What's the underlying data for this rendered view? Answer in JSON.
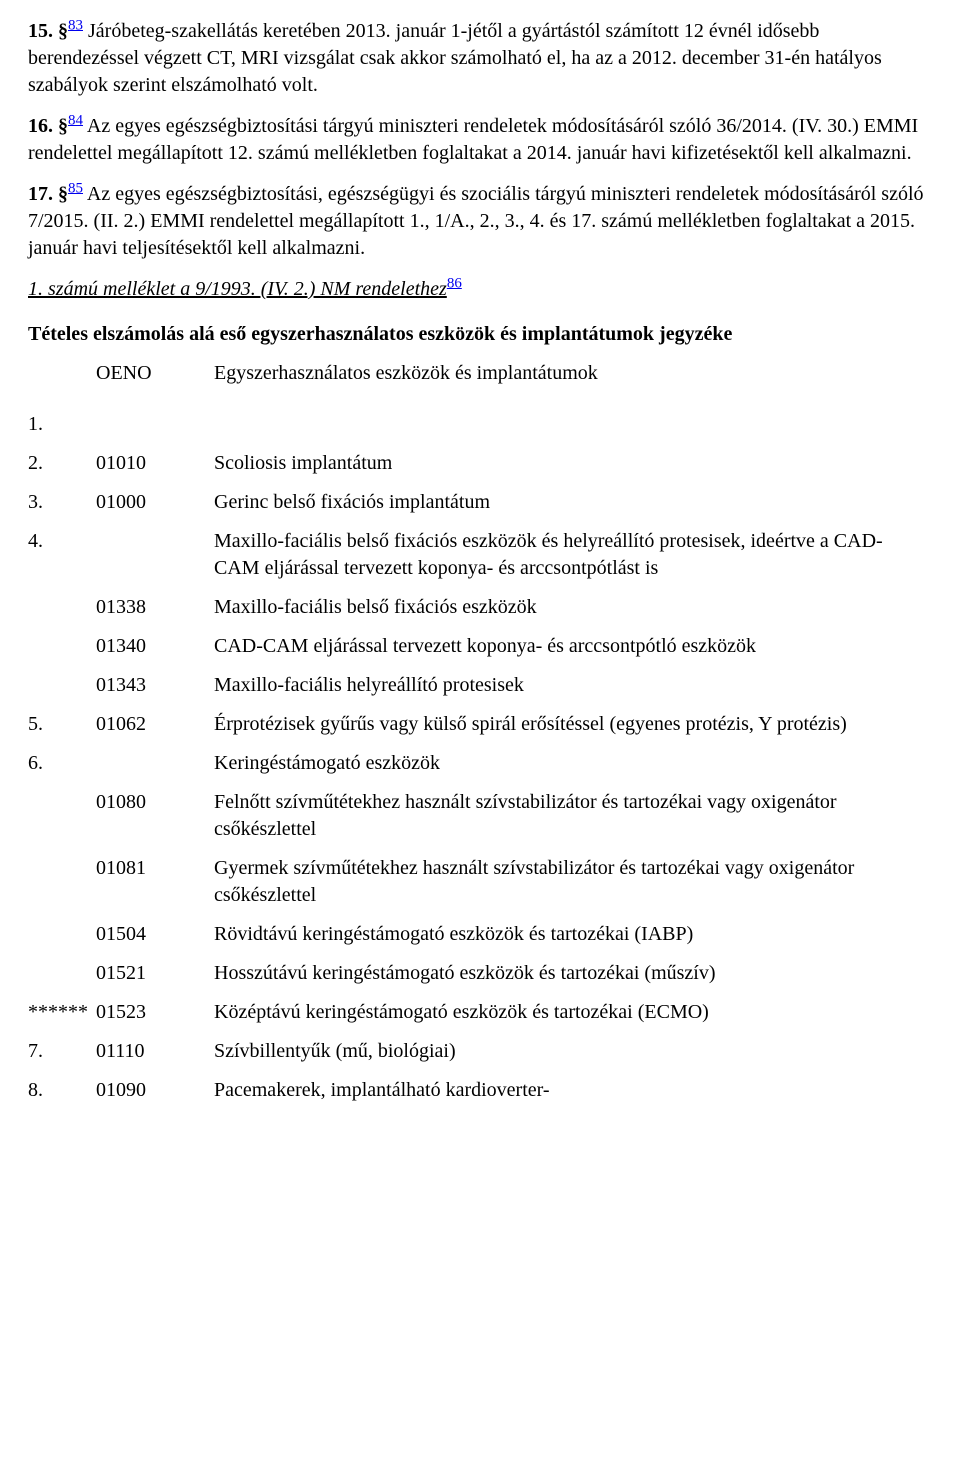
{
  "para15": {
    "num": "15. §",
    "sup": "83",
    "text_a": " Járóbeteg-szakellátás keretében 2013. január 1-jétől a gyártástól számított 12 évnél idősebb berendezéssel végzett CT, MRI vizsgálat csak akkor számolható el, ha az a 2012. december 31-én hatályos szabályok szerint elszámolható volt."
  },
  "para16": {
    "num": "16. §",
    "sup": "84",
    "text_a": " Az egyes egészségbiztosítási tárgyú miniszteri rendeletek módosításáról szóló 36/2014. (IV. 30.) EMMI rendelettel megállapított 12. számú mellékletben foglaltakat a 2014. január havi kifizetésektől kell alkalmazni."
  },
  "para17": {
    "num": "17. §",
    "sup": "85",
    "text_a": " Az egyes egészségbiztosítási, egészségügyi és szociális tárgyú miniszteri rendeletek módosításáról szóló 7/2015. (II. 2.) EMMI rendelettel megállapított 1., 1/A., 2., 3., 4. és 17. számú mellékletben foglaltakat a 2015. január havi teljesítésektől kell alkalmazni."
  },
  "attachment_title": {
    "text": "1. számú melléklet a 9/1993. (IV. 2.) NM rendelethez",
    "sup": "86"
  },
  "section_heading": "Tételes elszámolás alá eső egyszerhasználatos eszközök és implantátumok jegyzéke",
  "headers": {
    "oeno": "OENO",
    "desc": "Egyszerhasználatos eszközök és implantátumok"
  },
  "rows": [
    {
      "n": "1.",
      "o": "",
      "d": ""
    },
    {
      "n": "2.",
      "o": "01010",
      "d": "Scoliosis implantátum"
    },
    {
      "n": "3.",
      "o": "01000",
      "d": "Gerinc belső fixációs implantátum"
    },
    {
      "n": "4.",
      "o": "",
      "d": "Maxillo-faciális belső fixációs eszközök és helyreállító protesisek, ideértve a CAD-CAM eljárással tervezett koponya- és arccsontpótlást is"
    },
    {
      "n": "",
      "o": "01338",
      "d": "Maxillo-faciális belső fixációs eszközök"
    },
    {
      "n": "",
      "o": "01340",
      "d": "CAD-CAM eljárással tervezett koponya- és arccsontpótló eszközök"
    },
    {
      "n": "",
      "o": "01343",
      "d": "Maxillo-faciális helyreállító protesisek"
    },
    {
      "n": "5.",
      "o": "01062",
      "d": "Érprotézisek gyűrűs vagy külső spirál erősítéssel (egyenes protézis, Y protézis)"
    },
    {
      "n": "6.",
      "o": "",
      "d": "Keringéstámogató eszközök"
    },
    {
      "n": "",
      "o": "01080",
      "d": "Felnőtt szívműtétekhez használt szívstabilizátor és tartozékai vagy oxigenátor csőkészlettel"
    },
    {
      "n": "",
      "o": "01081",
      "d": "Gyermek szívműtétekhez használt szívstabilizátor és tartozékai vagy oxigenátor csőkészlettel"
    },
    {
      "n": "",
      "o": "01504",
      "d": "Rövidtávú keringéstámogató eszközök és tartozékai (IABP)"
    },
    {
      "n": "",
      "o": "01521",
      "d": "Hosszútávú keringéstámogató eszközök és tartozékai (műszív)"
    },
    {
      "n": "******",
      "o": "01523",
      "d": "Középtávú keringéstámogató eszközök és tartozékai (ECMO)"
    },
    {
      "n": "7.",
      "o": "01110",
      "d": "Szívbillentyűk (mű, biológiai)"
    },
    {
      "n": "8.",
      "o": "01090",
      "d": "Pacemakerek, implantálható kardioverter-"
    }
  ]
}
